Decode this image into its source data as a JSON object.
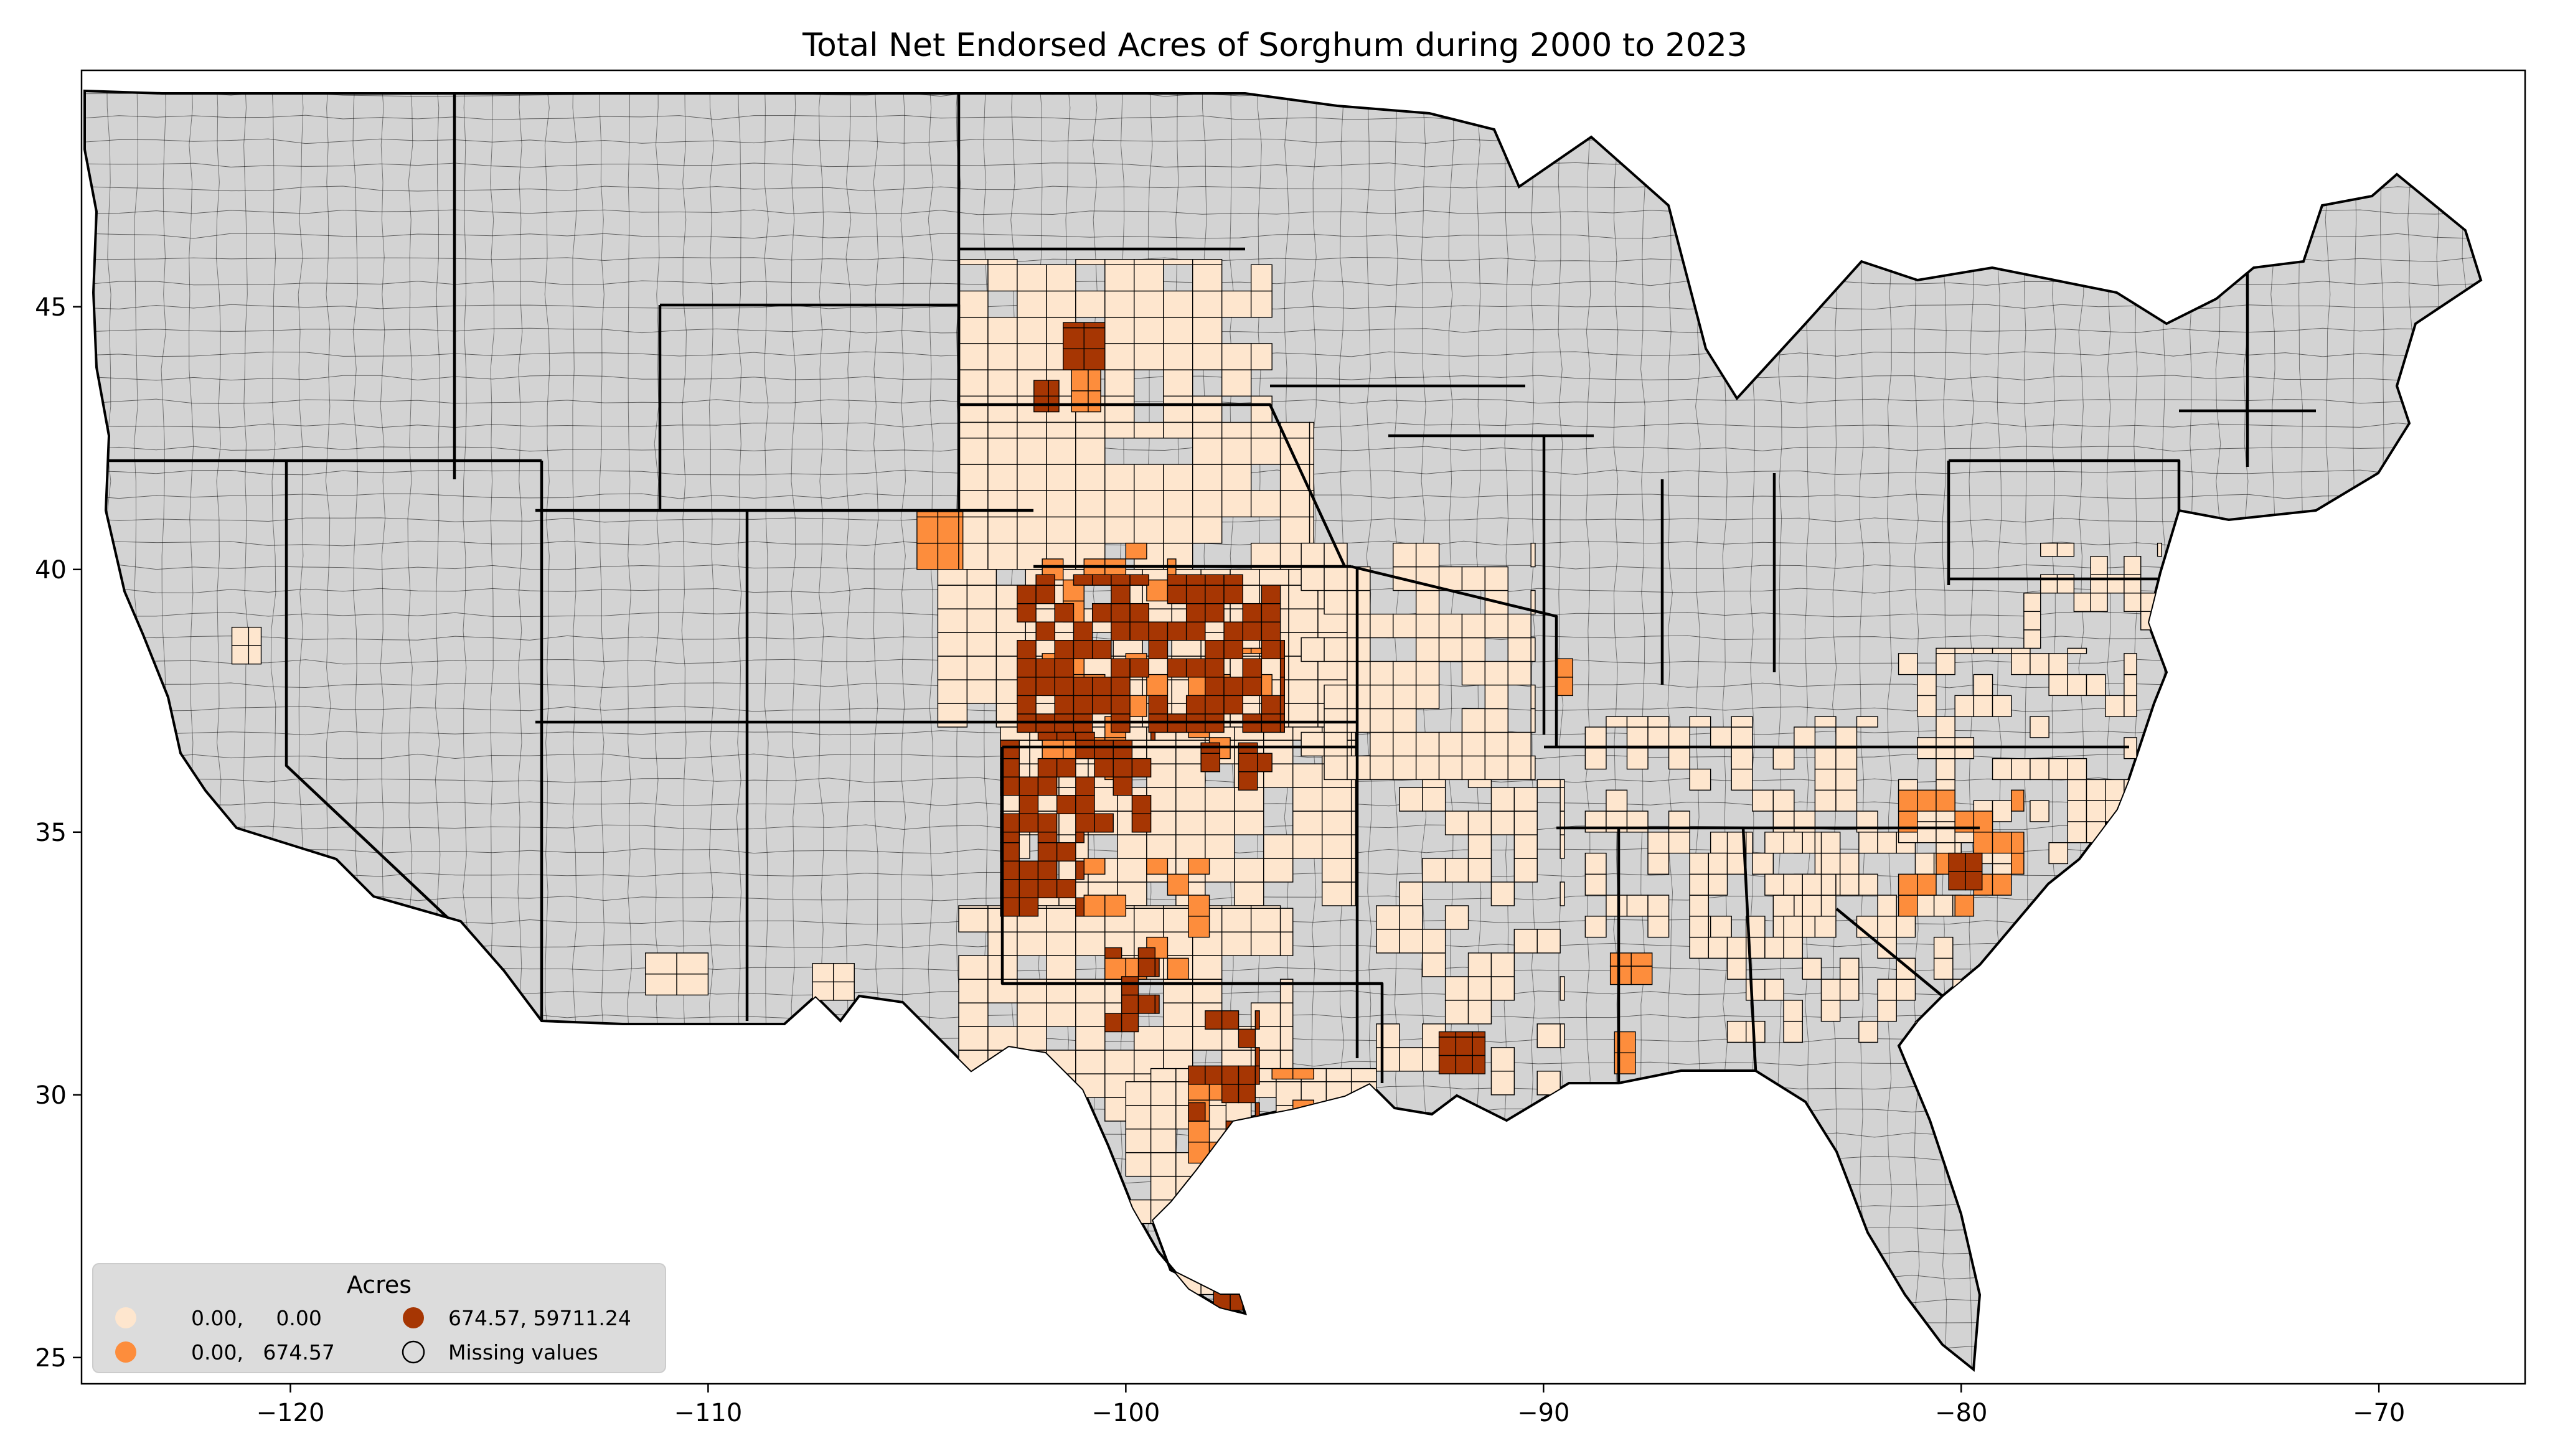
{
  "title": "Total Net Endorsed Acres of Sorghum during 2000 to 2023",
  "colors": {
    "missing": "#d3d3d3",
    "low": "#fee6ce",
    "mid": "#fd8d3c",
    "high": "#a63603",
    "frame": "#000000"
  },
  "map_data": {
    "type": "choropleth",
    "xlim": [
      -125,
      -66.5
    ],
    "ylim": [
      24.5,
      49.5
    ],
    "x_ticks": [
      {
        "value": -120,
        "label": "−120"
      },
      {
        "value": -110,
        "label": "−110"
      },
      {
        "value": -100,
        "label": "−100"
      },
      {
        "value": -90,
        "label": "−90"
      },
      {
        "value": -80,
        "label": "−80"
      },
      {
        "value": -70,
        "label": "−70"
      }
    ],
    "y_ticks": [
      {
        "value": 25,
        "label": "25"
      },
      {
        "value": 30,
        "label": "30"
      },
      {
        "value": 35,
        "label": "35"
      },
      {
        "value": 40,
        "label": "40"
      },
      {
        "value": 45,
        "label": "45"
      }
    ],
    "legend": {
      "title": "Acres",
      "placement": "lower-left",
      "entries": [
        {
          "label": "0.00,     0.00",
          "class": "low"
        },
        {
          "label": "0.00,   674.57",
          "class": "mid"
        },
        {
          "label": "674.57, 59711.24",
          "class": "high"
        },
        {
          "label": "Missing values",
          "class": "missing"
        }
      ]
    },
    "classes": [
      "missing",
      "low",
      "mid",
      "high"
    ]
  }
}
